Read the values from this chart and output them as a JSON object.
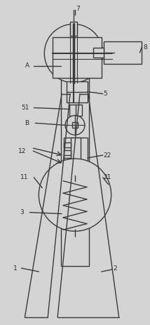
{
  "bg_color": "#d4d4d4",
  "line_color": "#3a3a3a",
  "lw": 1.0,
  "fig_width": 2.14,
  "fig_height": 4.63,
  "label_fs": 6.5,
  "label_color": "#2a2a2a"
}
